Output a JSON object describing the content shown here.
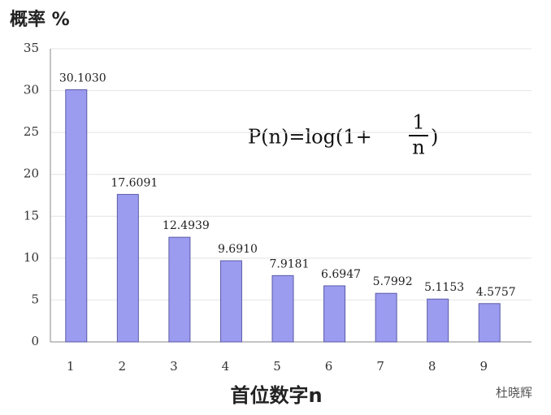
{
  "chart_data": {
    "type": "bar",
    "ylabel": "概率 %",
    "xlabel": "首位数字n",
    "annotation": {
      "left": "P(n)=log(1+",
      "numerator": "1",
      "denominator": "n",
      "right": ")"
    },
    "watermark": "杜晓辉",
    "categories": [
      "1",
      "2",
      "3",
      "4",
      "5",
      "6",
      "7",
      "8",
      "9"
    ],
    "values": [
      30.103,
      17.6091,
      12.4939,
      9.691,
      7.9181,
      6.6947,
      5.7992,
      5.1153,
      4.5757
    ],
    "value_labels": [
      "30.1030",
      "17.6091",
      "12.4939",
      "9.6910",
      "7.9181",
      "6.6947",
      "5.7992",
      "5.1153",
      "4.5757"
    ],
    "color": "#9b9bf0",
    "ylim": [
      0,
      35
    ],
    "yticks": [
      0,
      5,
      10,
      15,
      20,
      25,
      30,
      35
    ],
    "grid": true
  }
}
